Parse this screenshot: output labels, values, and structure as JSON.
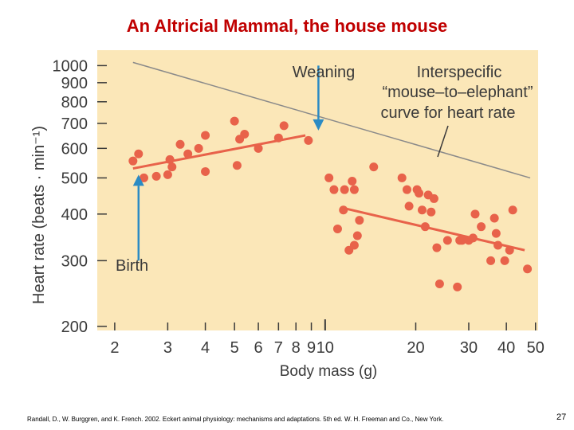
{
  "slide": {
    "title": "An Altricial Mammal, the house mouse",
    "citation": "Randall, D., W. Burggren, and K. French. 2002. Eckert animal physiology: mechanisms and adaptations. 5th ed. W. H. Freeman and Co., New York.",
    "page_number": "27"
  },
  "colors": {
    "title": "#c00000",
    "plot_background": "#fbe7b8",
    "points": "#e8624a",
    "regression": "#e8624a",
    "interspecific_line": "#8a8a8a",
    "arrows": "#2b8bc4",
    "text": "#3a3a3a"
  },
  "chart_data": {
    "type": "scatter",
    "x_scale": "log",
    "y_scale": "log",
    "xlabel": "Body mass (g)",
    "ylabel": "Heart rate (beats · min⁻¹)",
    "xlim": [
      1.75,
      51
    ],
    "ylim": [
      195,
      1100
    ],
    "x_ticks": [
      2,
      3,
      4,
      5,
      6,
      7,
      8,
      9,
      10,
      20,
      30,
      40,
      50
    ],
    "x_tick_labels": [
      "2",
      "3",
      "4",
      "5",
      "6",
      "7",
      "8",
      "9",
      "10",
      "20",
      "30",
      "40",
      "50"
    ],
    "y_ticks": [
      200,
      300,
      400,
      500,
      600,
      700,
      800,
      900,
      1000
    ],
    "y_tick_labels": [
      "200",
      "300",
      "400",
      "500",
      "600",
      "700",
      "800",
      "900",
      "1000"
    ],
    "annotations": [
      {
        "id": "weaning",
        "text": "Weaning",
        "arrow_at_x": 9.5,
        "arrow_from_y": 1000,
        "arrow_to_y": 670
      },
      {
        "id": "birth",
        "text": "Birth",
        "arrow_at_x": 2.4,
        "arrow_from_y": 300,
        "arrow_to_y": 510
      },
      {
        "id": "interspecific",
        "lines": [
          "Interspecific",
          "“mouse–to–elephant”",
          "curve for heart rate"
        ]
      }
    ],
    "series": [
      {
        "name": "Pre-weaning points",
        "points": [
          [
            2.3,
            555
          ],
          [
            2.4,
            580
          ],
          [
            2.5,
            500
          ],
          [
            2.75,
            505
          ],
          [
            3.0,
            510
          ],
          [
            3.05,
            560
          ],
          [
            3.1,
            535
          ],
          [
            3.3,
            615
          ],
          [
            3.5,
            580
          ],
          [
            3.8,
            600
          ],
          [
            4.0,
            650
          ],
          [
            4.0,
            520
          ],
          [
            5.0,
            710
          ],
          [
            5.1,
            540
          ],
          [
            5.2,
            635
          ],
          [
            5.4,
            655
          ],
          [
            6.0,
            600
          ],
          [
            7.0,
            640
          ],
          [
            7.3,
            690
          ],
          [
            8.8,
            630
          ]
        ]
      },
      {
        "name": "Post-weaning points",
        "points": [
          [
            10.3,
            500
          ],
          [
            10.7,
            465
          ],
          [
            11.0,
            365
          ],
          [
            11.5,
            410
          ],
          [
            11.6,
            465
          ],
          [
            12.0,
            320
          ],
          [
            12.3,
            490
          ],
          [
            12.5,
            465
          ],
          [
            12.5,
            330
          ],
          [
            12.8,
            350
          ],
          [
            13.0,
            385
          ],
          [
            14.5,
            535
          ],
          [
            18.0,
            500
          ],
          [
            18.7,
            465
          ],
          [
            19.0,
            420
          ],
          [
            20.2,
            465
          ],
          [
            20.5,
            455
          ],
          [
            21.0,
            410
          ],
          [
            21.5,
            370
          ],
          [
            22.0,
            450
          ],
          [
            22.5,
            405
          ],
          [
            23.0,
            440
          ],
          [
            23.5,
            325
          ],
          [
            24.0,
            260
          ],
          [
            25.5,
            340
          ],
          [
            27.5,
            255
          ],
          [
            28.0,
            340
          ],
          [
            28.5,
            340
          ],
          [
            30.0,
            340
          ],
          [
            31.0,
            345
          ],
          [
            31.5,
            400
          ],
          [
            33.0,
            370
          ],
          [
            35.5,
            300
          ],
          [
            36.5,
            390
          ],
          [
            37.0,
            355
          ],
          [
            37.5,
            330
          ],
          [
            39.5,
            300
          ],
          [
            41.0,
            320
          ],
          [
            42.0,
            410
          ],
          [
            47.0,
            285
          ]
        ]
      }
    ],
    "lines": [
      {
        "name": "Pre-weaning regression",
        "from": [
          2.3,
          530
        ],
        "to": [
          8.6,
          650
        ]
      },
      {
        "name": "Post-weaning regression",
        "from": [
          11.5,
          415
        ],
        "to": [
          46.0,
          320
        ]
      },
      {
        "name": "Interspecific curve",
        "from": [
          2.3,
          1020
        ],
        "to": [
          48.0,
          500
        ]
      }
    ]
  }
}
